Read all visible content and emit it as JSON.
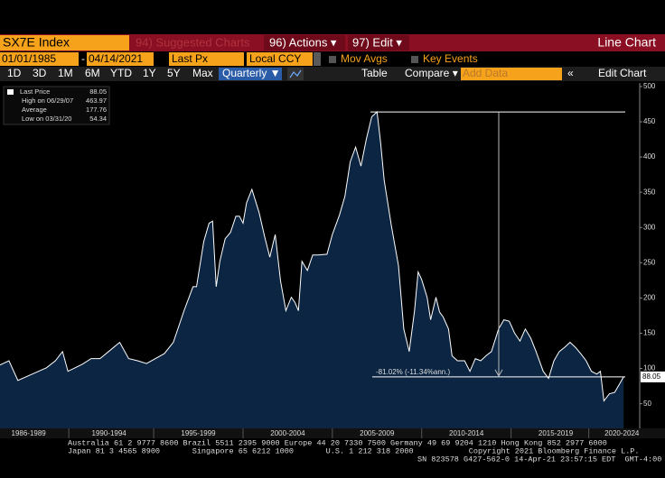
{
  "toolbar": {
    "ticker": "SX7E Index",
    "suggested": "94) Suggested Charts",
    "actions": "96) Actions ▾",
    "edit": "97) Edit ▾",
    "chart_kind": "Line Chart",
    "start_date": "01/01/1985",
    "date_sep": "-",
    "end_date": "04/14/2021",
    "field": "Last Px",
    "currency": "Local CCY",
    "mov_avgs": "Mov Avgs",
    "key_events": "Key Events",
    "ranges": [
      "1D",
      "3D",
      "1M",
      "6M",
      "YTD",
      "1Y",
      "5Y",
      "Max"
    ],
    "period": "Quarterly ▼",
    "table": "Table",
    "compare": "Compare ▾",
    "add_data": "Add Data",
    "collapse": "«",
    "edit_chart": "Edit Chart"
  },
  "chart_data": {
    "type": "area",
    "color": "#ffffff",
    "fill": "#0b2542",
    "legend": [
      {
        "label": "Last Price",
        "value": 88.05
      },
      {
        "label": "High on 06/29/07",
        "value": 463.97
      },
      {
        "label": "Average",
        "value": 177.76
      },
      {
        "label": "Low on 03/31/20",
        "value": 54.34
      }
    ],
    "x": [
      1986.4,
      1986.9,
      1987.4,
      1988.2,
      1989.0,
      1989.5,
      1989.9,
      1990.2,
      1991.0,
      1991.5,
      1992.0,
      1993.1,
      1993.6,
      1994.1,
      1994.6,
      1995.1,
      1995.6,
      1996.1,
      1996.7,
      1997.2,
      1997.4,
      1997.8,
      1998.1,
      1998.3,
      1998.5,
      1998.7,
      1999.0,
      1999.3,
      1999.6,
      1999.8,
      2000.0,
      2000.2,
      2000.5,
      2000.9,
      2001.2,
      2001.5,
      2001.8,
      2002.1,
      2002.4,
      2002.7,
      2002.9,
      2003.1,
      2003.3,
      2003.6,
      2003.9,
      2004.2,
      2004.7,
      2005.0,
      2005.4,
      2005.7,
      2006.0,
      2006.3,
      2006.6,
      2006.9,
      2007.2,
      2007.5,
      2007.7,
      2007.9,
      2008.3,
      2008.7,
      2009.0,
      2009.3,
      2009.6,
      2009.8,
      2010.0,
      2010.3,
      2010.5,
      2010.8,
      2011.0,
      2011.2,
      2011.5,
      2011.7,
      2012.0,
      2012.4,
      2012.7,
      2013.0,
      2013.3,
      2013.6,
      2013.9,
      2014.3,
      2014.6,
      2014.9,
      2015.2,
      2015.5,
      2015.8,
      2016.1,
      2016.4,
      2016.8,
      2017.1,
      2017.4,
      2017.7,
      2018.0,
      2018.3,
      2018.6,
      2018.9,
      2019.2,
      2019.5,
      2019.8,
      2020.0,
      2020.2,
      2020.5,
      2020.8,
      2021.0,
      2021.3
    ],
    "values": [
      105,
      111,
      83,
      92,
      101,
      111,
      124,
      96,
      106,
      114,
      114,
      137,
      114,
      111,
      107,
      114,
      121,
      137,
      182,
      216,
      216,
      280,
      306,
      309,
      216,
      252,
      284,
      293,
      316,
      316,
      306,
      335,
      354,
      321,
      288,
      258,
      290,
      224,
      182,
      201,
      194,
      182,
      252,
      239,
      261,
      261,
      262,
      290,
      318,
      344,
      393,
      414,
      387,
      425,
      457,
      464,
      421,
      367,
      303,
      246,
      156,
      124,
      182,
      237,
      226,
      201,
      169,
      201,
      180,
      173,
      156,
      118,
      111,
      111,
      96,
      114,
      111,
      118,
      124,
      156,
      169,
      167,
      150,
      139,
      156,
      143,
      124,
      96,
      86,
      111,
      124,
      130,
      137,
      130,
      121,
      111,
      96,
      92,
      96,
      54,
      64,
      66,
      75,
      88.05
    ],
    "annotation": "-81.02% (-11.34%ann.)",
    "price_tag": "88.05",
    "xlim": [
      1986.4,
      2022.2
    ],
    "xticks": [
      {
        "value": 1988,
        "label": "1986-1989"
      },
      {
        "value": 1992.5,
        "label": "1990-1994"
      },
      {
        "value": 1997.5,
        "label": "1995-1999"
      },
      {
        "value": 2002.5,
        "label": "2000-2004"
      },
      {
        "value": 2007.5,
        "label": "2005-2009"
      },
      {
        "value": 2012.5,
        "label": "2010-2014"
      },
      {
        "value": 2017.5,
        "label": "2015-2019"
      },
      {
        "value": 2021.2,
        "label": "2020-2024"
      }
    ],
    "ylim": [
      15,
      505
    ],
    "yticks": [
      50,
      100,
      150,
      200,
      250,
      300,
      350,
      400,
      450,
      500
    ]
  },
  "footer": [
    "Australia 61 2 9777 8600 Brazil 5511 2395 9000 Europe 44 20 7330 7500 Germany 49 69 9204 1210 Hong Kong 852 2977 6000",
    "Japan 81 3 4565 8900       Singapore 65 6212 1000       U.S. 1 212 318 2000            Copyright 2021 Bloomberg Finance L.P.",
    "SN 823578 G427-562-0 14-Apr-21 23:57:15 EDT  GMT-4:00"
  ]
}
